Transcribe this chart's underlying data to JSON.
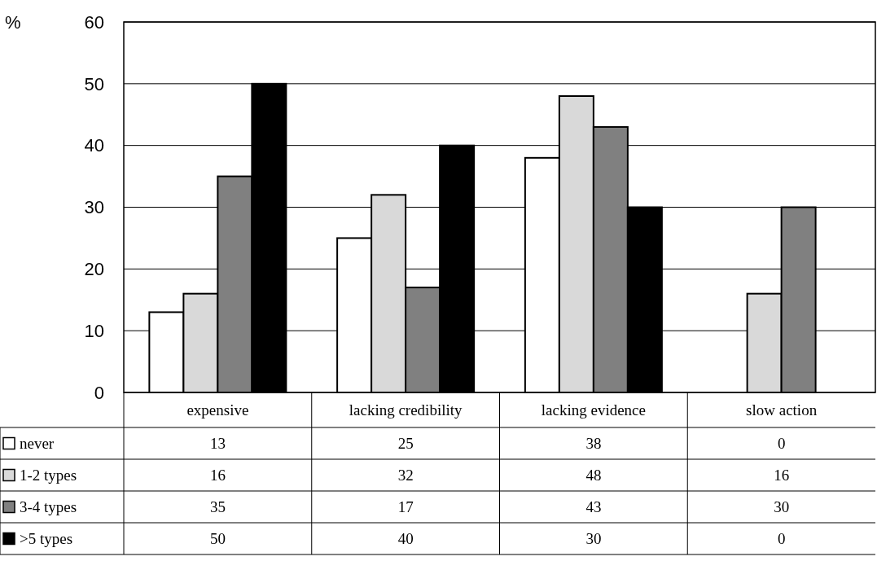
{
  "chart_data": {
    "type": "bar",
    "ylabel": "%",
    "categories": [
      "expensive",
      "lacking credibility",
      "lacking evidence",
      "slow action"
    ],
    "series": [
      {
        "name": "never",
        "color": "#ffffff",
        "values": [
          13,
          25,
          38,
          0
        ]
      },
      {
        "name": "1-2 types",
        "color": "#d9d9d9",
        "values": [
          16,
          32,
          48,
          16
        ]
      },
      {
        "name": "3-4 types",
        "color": "#808080",
        "values": [
          35,
          17,
          43,
          30
        ]
      },
      {
        "name": ">5 types",
        "color": "#000000",
        "values": [
          50,
          40,
          30,
          0
        ]
      }
    ],
    "ylim": [
      0,
      60
    ],
    "yticks": [
      0,
      10,
      20,
      30,
      40,
      50,
      60
    ],
    "grid": "y",
    "legend": "bottom",
    "data_labels": true
  }
}
